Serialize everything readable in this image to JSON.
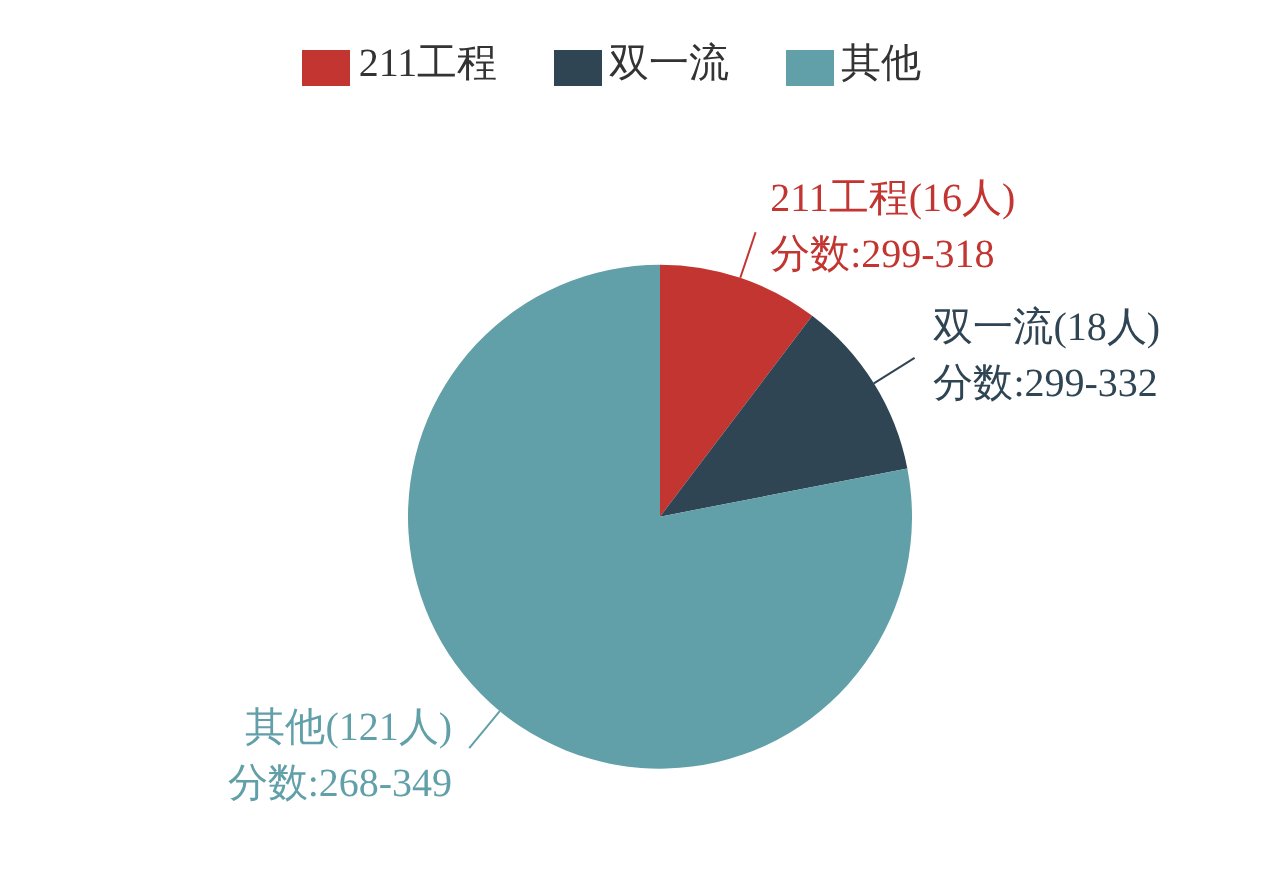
{
  "chart_data": {
    "type": "pie",
    "categories": [
      "211工程",
      "双一流",
      "其他"
    ],
    "values": [
      16,
      18,
      121
    ],
    "colors": [
      "#c23531",
      "#2f4554",
      "#61a0a8"
    ],
    "value_labels": [
      "211工程(16人)\n分数:299-318",
      "双一流(18人)\n分数:299-332",
      "其他(121人)\n分数:268-349"
    ],
    "legend": "top"
  }
}
